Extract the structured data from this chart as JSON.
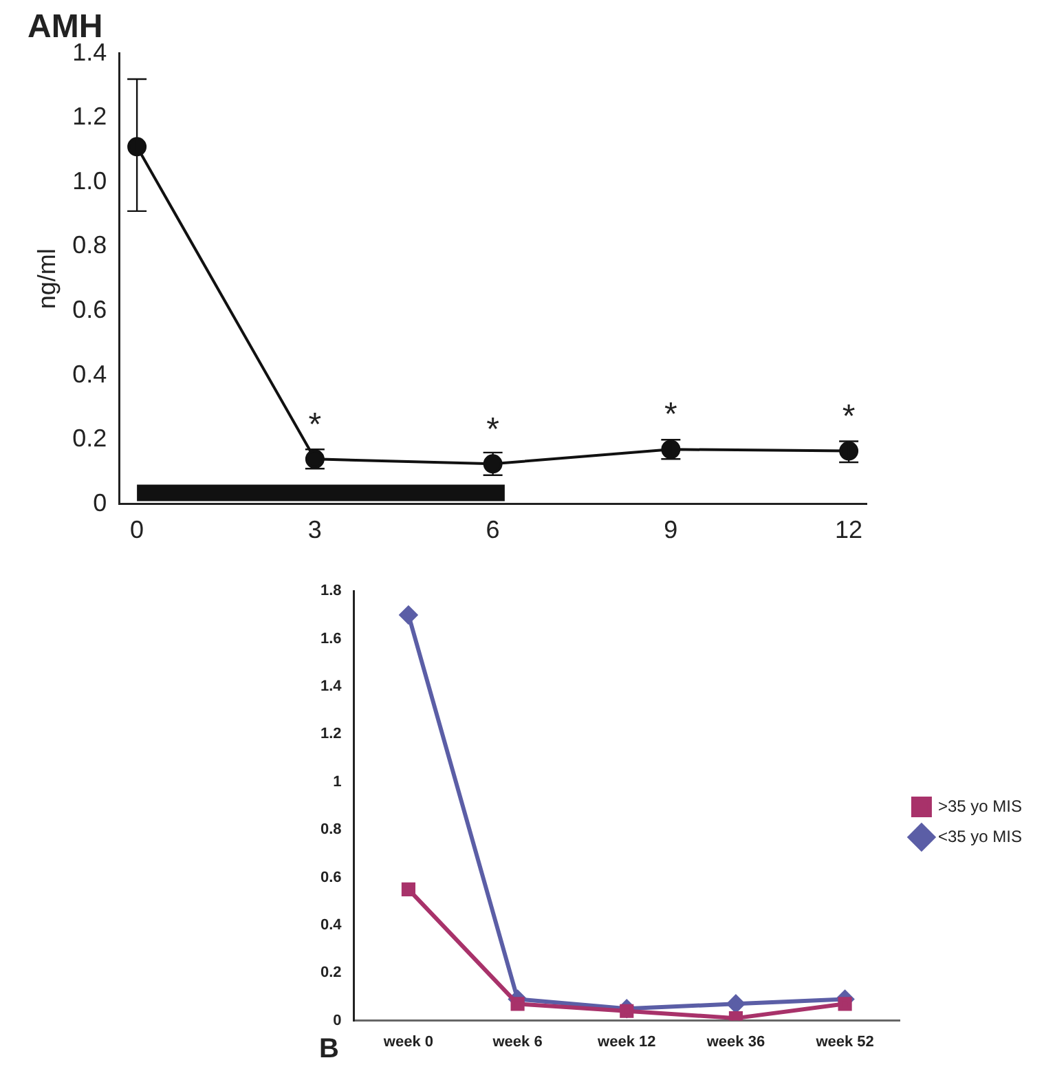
{
  "chart_data": [
    {
      "type": "line",
      "title": "AMH",
      "ylabel": "ng/ml",
      "x": [
        0,
        3,
        6,
        9,
        12
      ],
      "series": [
        {
          "color": "#111111",
          "values": [
            1.11,
            0.14,
            0.125,
            0.17,
            0.165
          ],
          "errors": [
            [
              0.91,
              1.32
            ],
            [
              0.11,
              0.17
            ],
            [
              0.09,
              0.16
            ],
            [
              0.14,
              0.2
            ],
            [
              0.13,
              0.195
            ]
          ]
        },
        {
          "color": "#111111",
          "marker": "none",
          "x": [
            0,
            6.2
          ],
          "values": [
            0.035,
            0.035
          ]
        }
      ],
      "xlim": [
        -0.3,
        12.3
      ],
      "xticks": [
        0,
        3,
        6,
        9,
        12
      ],
      "ylim": [
        0,
        1.4
      ],
      "yticks": [
        0,
        0.2,
        0.4,
        0.6,
        0.8,
        {
          "value": 1,
          "label": "1.0"
        },
        1.2,
        1.4
      ],
      "annotations": [
        {
          "text": "*",
          "x": 3,
          "y": 0.14
        },
        {
          "text": "*",
          "x": 6,
          "y": 0.125
        },
        {
          "text": "*",
          "x": 9,
          "y": 0.17
        },
        {
          "text": "*",
          "x": 12,
          "y": 0.165
        }
      ],
      "marker": "circle",
      "grid": false,
      "legend": false
    },
    {
      "type": "line",
      "categories": [
        "week 0",
        "week 6",
        "week 12",
        "week 36",
        "week 52"
      ],
      "series": [
        {
          "name": "<35 yo MIS",
          "color": "#5b5ea6",
          "marker": "diamond",
          "values": [
            1.7,
            0.09,
            0.05,
            0.07,
            0.09
          ]
        },
        {
          "name": ">35 yo MIS",
          "color": "#a8326a",
          "marker": "square",
          "values": [
            0.55,
            0.07,
            0.04,
            0.01,
            0.07
          ]
        }
      ],
      "ylim": [
        0,
        1.8
      ],
      "yticks": [
        0,
        0.2,
        0.4,
        0.6,
        0.8,
        1,
        1.2,
        1.4,
        1.6,
        1.8
      ],
      "annotations": [
        "B"
      ],
      "grid": false,
      "legend": "right"
    }
  ]
}
